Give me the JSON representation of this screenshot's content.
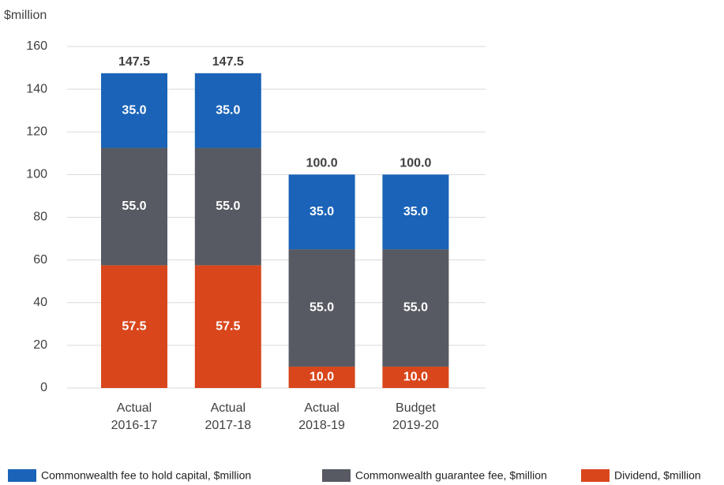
{
  "chart_data": {
    "type": "stacked_bar",
    "y_axis_label": "$million",
    "categories": [
      [
        "Actual",
        "2016-17"
      ],
      [
        "Actual",
        "2017-18"
      ],
      [
        "Actual",
        "2018-19"
      ],
      [
        "Budget",
        "2019-20"
      ]
    ],
    "series": [
      {
        "name": "Commonwealth fee to hold capital, $million",
        "color": "#1a63b8",
        "values": [
          35,
          35,
          35,
          35
        ],
        "value_labels": [
          "35.0",
          "35.0",
          "35.0",
          "35.0"
        ]
      },
      {
        "name": "Commonwealth guarantee fee, $million",
        "color": "#575a62",
        "values": [
          55,
          55,
          55,
          55
        ],
        "value_labels": [
          "55.0",
          "55.0",
          "55.0",
          "55.0"
        ]
      },
      {
        "name": "Dividend, $million",
        "color": "#d9461c",
        "values": [
          57.5,
          57.5,
          10,
          10
        ],
        "value_labels": [
          "57.5",
          "57.5",
          "10.0",
          "10.0"
        ]
      }
    ],
    "totals": [
      147.5,
      147.5,
      100,
      100
    ],
    "total_labels": [
      "147.5",
      "147.5",
      "100.0",
      "100.0"
    ],
    "ylim": [
      0,
      160
    ],
    "yticks": [
      0,
      20,
      40,
      60,
      80,
      100,
      120,
      140,
      160
    ],
    "grid": true
  }
}
